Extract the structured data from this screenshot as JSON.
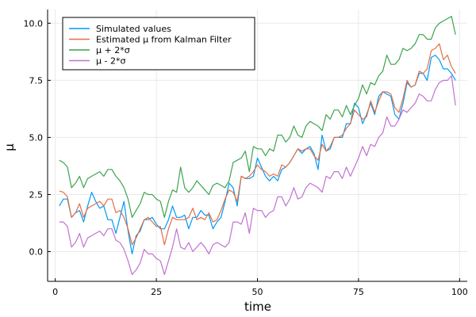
{
  "chart_data": {
    "type": "line",
    "xlabel": "time",
    "ylabel": "μ",
    "xlim": [
      -1.9,
      101.9
    ],
    "ylim": [
      -1.3,
      10.6
    ],
    "xticks": [
      0,
      25,
      50,
      75,
      100
    ],
    "xtick_labels": [
      "0",
      "25",
      "50",
      "75",
      "100"
    ],
    "yticks": [
      0,
      2.5,
      5,
      7.5,
      10
    ],
    "ytick_labels": [
      "0.0",
      "2.5",
      "5.0",
      "7.5",
      "10.0"
    ],
    "grid": true,
    "legend_position": "top-left",
    "x": [
      1,
      2,
      3,
      4,
      5,
      6,
      7,
      8,
      9,
      10,
      11,
      12,
      13,
      14,
      15,
      16,
      17,
      18,
      19,
      20,
      21,
      22,
      23,
      24,
      25,
      26,
      27,
      28,
      29,
      30,
      31,
      32,
      33,
      34,
      35,
      36,
      37,
      38,
      39,
      40,
      41,
      42,
      43,
      44,
      45,
      46,
      47,
      48,
      49,
      50,
      51,
      52,
      53,
      54,
      55,
      56,
      57,
      58,
      59,
      60,
      61,
      62,
      63,
      64,
      65,
      66,
      67,
      68,
      69,
      70,
      71,
      72,
      73,
      74,
      75,
      76,
      77,
      78,
      79,
      80,
      81,
      82,
      83,
      84,
      85,
      86,
      87,
      88,
      89,
      90,
      91,
      92,
      93,
      94,
      95,
      96,
      97,
      98,
      99
    ],
    "series": [
      {
        "name": "Simulated values",
        "color": "#009af9",
        "values": [
          2.0,
          2.3,
          2.3,
          1.5,
          1.7,
          1.8,
          1.3,
          2.0,
          2.6,
          2.2,
          1.9,
          2.0,
          1.4,
          1.4,
          0.8,
          1.5,
          2.2,
          0.9,
          -0.1,
          0.7,
          0.9,
          1.4,
          1.4,
          1.5,
          1.2,
          1.0,
          1.0,
          1.4,
          2.0,
          1.5,
          1.5,
          1.6,
          1.0,
          1.5,
          1.5,
          1.8,
          1.6,
          1.6,
          1.0,
          1.3,
          1.5,
          2.2,
          3.0,
          2.8,
          2.0,
          3.3,
          3.2,
          3.2,
          3.3,
          4.1,
          3.7,
          3.3,
          3.1,
          3.3,
          3.1,
          3.6,
          3.7,
          3.9,
          4.2,
          4.5,
          4.3,
          4.5,
          4.6,
          4.3,
          3.6,
          5.1,
          4.4,
          4.5,
          5.0,
          5.0,
          5.0,
          5.6,
          5.6,
          6.5,
          6.3,
          5.6,
          6.0,
          6.5,
          6.0,
          6.8,
          7.0,
          6.9,
          6.8,
          6.0,
          5.8,
          6.5,
          7.4,
          7.2,
          7.3,
          7.8,
          7.8,
          7.5,
          8.5,
          8.6,
          8.4,
          8.0,
          8.0,
          7.8,
          7.5
        ]
      },
      {
        "name": "Estimated μ from Kalman Filter",
        "color": "#e26f46",
        "values": [
          2.65,
          2.6,
          2.4,
          1.5,
          1.7,
          2.1,
          1.5,
          1.9,
          2.0,
          2.1,
          2.2,
          2.0,
          2.3,
          2.3,
          1.7,
          1.8,
          1.5,
          1.0,
          0.3,
          0.6,
          1.0,
          1.4,
          1.5,
          1.3,
          1.1,
          1.1,
          0.3,
          1.0,
          1.5,
          1.4,
          1.4,
          1.4,
          1.5,
          1.9,
          1.4,
          1.5,
          1.4,
          1.7,
          1.3,
          1.4,
          1.8,
          2.3,
          2.7,
          2.6,
          2.2,
          3.3,
          3.2,
          3.3,
          3.5,
          3.8,
          3.6,
          3.5,
          3.3,
          3.4,
          3.3,
          3.8,
          3.7,
          3.9,
          4.2,
          4.5,
          4.4,
          4.5,
          4.5,
          4.2,
          4.0,
          4.7,
          4.4,
          4.6,
          5.0,
          5.0,
          5.1,
          5.4,
          5.6,
          6.2,
          6.0,
          5.8,
          5.9,
          6.6,
          6.1,
          6.6,
          7.0,
          7.0,
          6.9,
          6.3,
          6.1,
          6.7,
          7.5,
          7.2,
          7.3,
          7.9,
          7.8,
          8.0,
          8.8,
          8.9,
          9.1,
          8.4,
          8.6,
          8.1,
          7.8
        ]
      },
      {
        "name": "μ + 2*σ",
        "color": "#3da44d",
        "values": [
          4.0,
          3.9,
          3.7,
          2.8,
          3.0,
          3.3,
          2.8,
          3.2,
          3.3,
          3.4,
          3.5,
          3.3,
          3.6,
          3.6,
          3.3,
          3.1,
          2.8,
          2.3,
          1.5,
          1.8,
          2.1,
          2.6,
          2.5,
          2.5,
          2.3,
          2.2,
          1.5,
          2.2,
          2.7,
          2.6,
          3.7,
          2.8,
          2.6,
          2.8,
          3.1,
          2.9,
          2.7,
          2.5,
          2.9,
          3.0,
          2.9,
          2.8,
          3.1,
          3.9,
          4.0,
          4.1,
          4.4,
          3.5,
          4.6,
          4.5,
          4.5,
          4.2,
          4.5,
          4.4,
          5.1,
          5.1,
          4.8,
          5.0,
          5.5,
          5.1,
          5.0,
          5.5,
          5.7,
          5.6,
          5.5,
          5.3,
          6.0,
          5.8,
          6.2,
          6.2,
          5.9,
          6.4,
          6.0,
          6.4,
          6.7,
          7.3,
          6.9,
          7.4,
          7.3,
          7.7,
          7.9,
          8.6,
          8.2,
          8.2,
          8.4,
          8.9,
          8.8,
          8.9,
          9.1,
          9.5,
          9.5,
          9.3,
          9.3,
          9.8,
          10.0,
          10.1,
          10.2,
          10.3,
          9.5
        ]
      },
      {
        "name": "μ - 2*σ",
        "color": "#c271d2",
        "values": [
          1.3,
          1.3,
          1.1,
          0.2,
          0.4,
          0.8,
          0.2,
          0.6,
          0.7,
          0.8,
          0.9,
          0.7,
          1.0,
          1.0,
          0.5,
          0.4,
          0.1,
          -0.4,
          -1.0,
          -0.8,
          -0.5,
          0.1,
          -0.1,
          -0.1,
          -0.3,
          -0.4,
          -1.0,
          -0.4,
          0.2,
          1.0,
          0.2,
          0.1,
          0.4,
          0.0,
          0.2,
          0.4,
          0.2,
          -0.1,
          0.3,
          0.4,
          0.3,
          0.2,
          0.4,
          1.3,
          1.3,
          1.2,
          1.7,
          0.8,
          1.9,
          1.8,
          1.8,
          1.5,
          1.7,
          1.8,
          2.4,
          2.4,
          2.0,
          2.3,
          2.8,
          2.3,
          2.4,
          2.8,
          3.0,
          2.9,
          2.8,
          2.6,
          3.3,
          3.2,
          3.5,
          3.5,
          3.2,
          3.7,
          3.3,
          3.7,
          4.1,
          4.6,
          4.2,
          4.7,
          4.6,
          5.0,
          5.2,
          5.9,
          5.5,
          5.5,
          5.8,
          6.2,
          6.1,
          6.3,
          6.5,
          6.9,
          6.8,
          6.6,
          6.6,
          7.1,
          7.4,
          7.5,
          7.5,
          7.7,
          6.4
        ]
      }
    ]
  }
}
